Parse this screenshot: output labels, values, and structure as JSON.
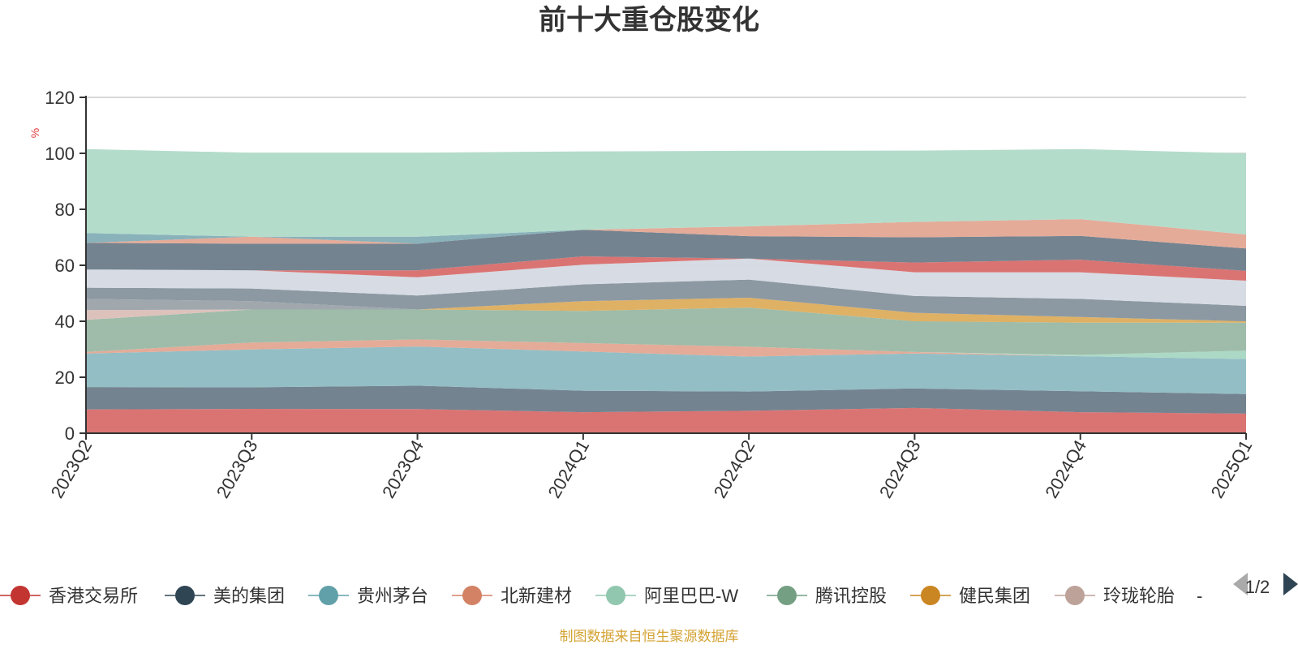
{
  "chart_data": {
    "type": "area",
    "stacked": true,
    "title": "前十大重仓股变化",
    "ylabel": "%",
    "ylim": [
      0,
      120
    ],
    "yticks": [
      0,
      20,
      40,
      60,
      80,
      100,
      120
    ],
    "grid": true,
    "categories": [
      "2023Q2",
      "2023Q3",
      "2023Q4",
      "2024Q1",
      "2024Q2",
      "2024Q3",
      "2024Q4",
      "2025Q1"
    ],
    "series": [
      {
        "name": "香港交易所",
        "color": "#d9706e",
        "values": [
          8.5,
          8.7,
          8.6,
          7.5,
          8.0,
          9.0,
          7.5,
          7.0
        ]
      },
      {
        "name": "美的集团",
        "color": "#6f7f8c",
        "values": [
          8.0,
          7.7,
          8.4,
          7.7,
          6.9,
          7.0,
          7.5,
          7.0
        ]
      },
      {
        "name": "贵州茅台",
        "color": "#8fbcc3",
        "values": [
          12.0,
          13.5,
          14.0,
          14.0,
          12.5,
          12.5,
          12.5,
          12.5
        ]
      },
      {
        "name": "北新建材",
        "color": "#e3a895",
        "values": [
          0.5,
          2.5,
          2.5,
          3.0,
          3.5,
          0.5,
          0,
          0
        ]
      },
      {
        "name": "阿里巴巴-W",
        "color": "#a9d8c4",
        "values": [
          0,
          0,
          0,
          0,
          0,
          0,
          0.5,
          3.0
        ]
      },
      {
        "name": "腾讯控股",
        "color": "#9bbaa6",
        "values": [
          11.5,
          11.8,
          10.7,
          11.5,
          14.0,
          11.0,
          11.5,
          10.0
        ]
      },
      {
        "name": "健民集团",
        "color": "#deae60",
        "values": [
          0,
          0,
          0,
          3.5,
          3.5,
          3.0,
          2.0,
          0.5
        ]
      }
    ],
    "extra_series": [
      {
        "color": "#dcc0ba",
        "values": [
          3.5,
          0,
          0,
          0,
          0,
          0,
          0,
          0
        ]
      },
      {
        "color": "#9da5ab",
        "values": [
          4.0,
          3.0,
          0,
          0,
          0,
          0,
          0,
          0
        ]
      },
      {
        "color": "#88969f",
        "values": [
          4.0,
          4.5,
          5.0,
          6.0,
          6.5,
          6.0,
          6.5,
          5.5
        ]
      },
      {
        "color": "#d6dae2",
        "values": [
          6.5,
          6.5,
          6.5,
          7.0,
          7.5,
          8.5,
          9.5,
          9.0
        ]
      },
      {
        "color": "#d9706e",
        "values": [
          0,
          0,
          2.5,
          3.0,
          0,
          3.5,
          4.5,
          3.5
        ]
      },
      {
        "color": "#6f7f8c",
        "values": [
          9.5,
          9.5,
          9.5,
          9.5,
          8.0,
          9.0,
          8.5,
          8.0
        ]
      },
      {
        "color": "#e3a895",
        "values": [
          0,
          2.5,
          0,
          0,
          3.5,
          5.5,
          6.0,
          5.0
        ]
      },
      {
        "color": "#85b0b8",
        "values": [
          3.5,
          0,
          2.5,
          0,
          0,
          0,
          0,
          0
        ]
      },
      {
        "color": "#b2dbc9",
        "values": [
          30.0,
          30.0,
          30.0,
          28.0,
          27.0,
          25.5,
          25.0,
          29.0
        ]
      }
    ]
  },
  "legend": {
    "page": "1/2",
    "items": [
      {
        "label": "香港交易所",
        "color": "#c23531"
      },
      {
        "label": "美的集团",
        "color": "#2f4554"
      },
      {
        "label": "贵州茅台",
        "color": "#61a0a8"
      },
      {
        "label": "北新建材",
        "color": "#d48265"
      },
      {
        "label": "阿里巴巴-W",
        "color": "#91c7ae"
      },
      {
        "label": "腾讯控股",
        "color": "#749f83"
      },
      {
        "label": "健民集团",
        "color": "#ca8622"
      },
      {
        "label": "玲珑轮胎",
        "color": "#bda29a"
      },
      {
        "label": "-",
        "color": "#6e7074"
      }
    ]
  },
  "footer": {
    "source": "制图数据来自恒生聚源数据库"
  }
}
